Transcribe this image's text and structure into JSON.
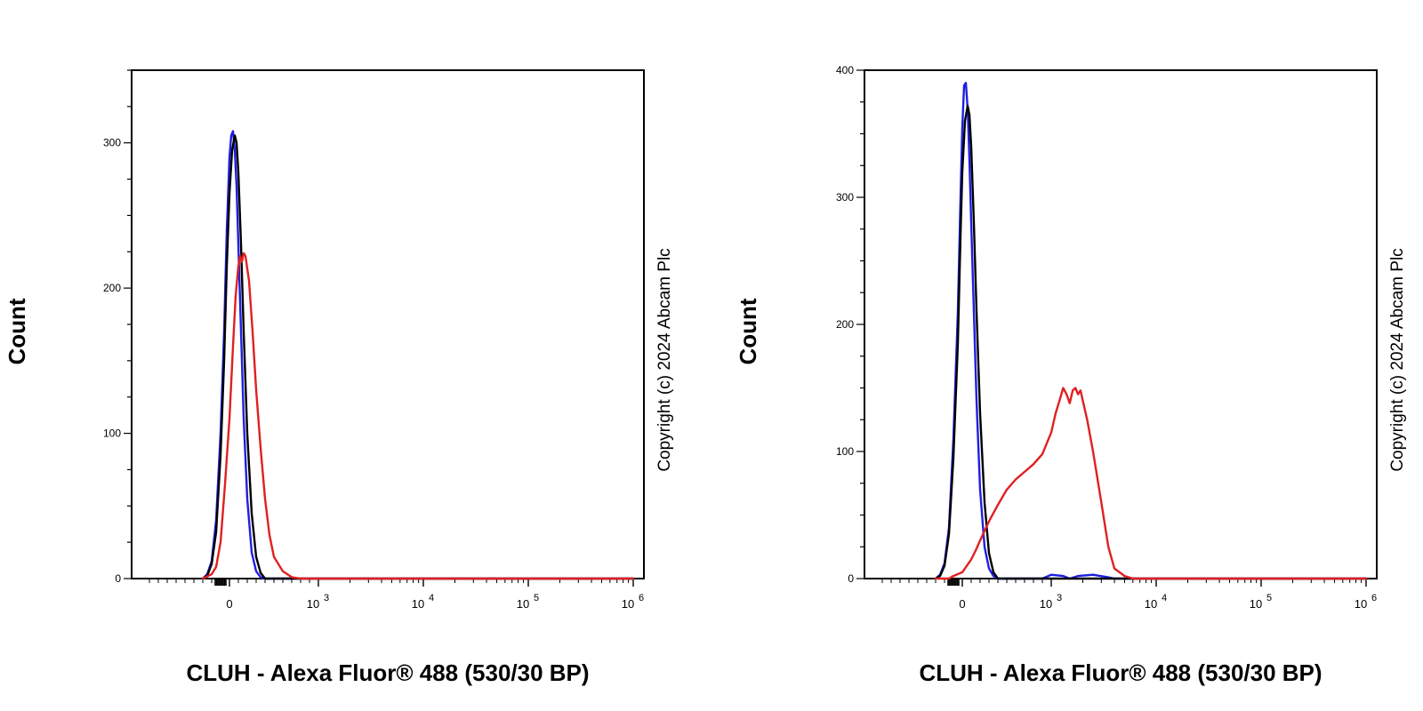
{
  "chart_data": [
    {
      "type": "line",
      "panel": "left",
      "xlabel": "CLUH - Alexa Fluor® 488 (530/30 BP)",
      "ylabel": "Count",
      "copyright": "Copyright (c) 2024 Abcam Plc",
      "x_scale": "biexponential",
      "x_ticks": [
        {
          "value": 0,
          "base": "0",
          "exp": ""
        },
        {
          "value": 1000,
          "base": "10",
          "exp": "3"
        },
        {
          "value": 10000,
          "base": "10",
          "exp": "4"
        },
        {
          "value": 100000,
          "base": "10",
          "exp": "5"
        },
        {
          "value": 1000000,
          "base": "10",
          "exp": "6"
        }
      ],
      "ylim": [
        0,
        350
      ],
      "y_ticks": [
        0,
        100,
        200,
        300
      ],
      "grid": false,
      "legend": "none",
      "series": [
        {
          "color": "#1f1fe0",
          "points": [
            [
              -300,
              0
            ],
            [
              -250,
              3
            ],
            [
              -200,
              12
            ],
            [
              -150,
              40
            ],
            [
              -100,
              100
            ],
            [
              -60,
              170
            ],
            [
              -30,
              240
            ],
            [
              0,
              290
            ],
            [
              20,
              305
            ],
            [
              40,
              308
            ],
            [
              60,
              295
            ],
            [
              80,
              270
            ],
            [
              100,
              230
            ],
            [
              130,
              170
            ],
            [
              160,
              110
            ],
            [
              200,
              55
            ],
            [
              250,
              18
            ],
            [
              300,
              5
            ],
            [
              350,
              1
            ],
            [
              400,
              0
            ],
            [
              1000000,
              0
            ]
          ]
        },
        {
          "color": "#000000",
          "points": [
            [
              -300,
              0
            ],
            [
              -250,
              2
            ],
            [
              -200,
              10
            ],
            [
              -150,
              32
            ],
            [
              -100,
              85
            ],
            [
              -60,
              150
            ],
            [
              -30,
              215
            ],
            [
              0,
              265
            ],
            [
              30,
              295
            ],
            [
              60,
              305
            ],
            [
              80,
              300
            ],
            [
              100,
              280
            ],
            [
              130,
              230
            ],
            [
              160,
              170
            ],
            [
              200,
              100
            ],
            [
              250,
              45
            ],
            [
              300,
              15
            ],
            [
              350,
              4
            ],
            [
              400,
              0
            ],
            [
              1000000,
              0
            ]
          ]
        },
        {
          "color": "#e02020",
          "points": [
            [
              -300,
              0
            ],
            [
              -200,
              3
            ],
            [
              -150,
              8
            ],
            [
              -100,
              25
            ],
            [
              -50,
              65
            ],
            [
              0,
              110
            ],
            [
              40,
              160
            ],
            [
              70,
              195
            ],
            [
              100,
              215
            ],
            [
              120,
              222
            ],
            [
              140,
              218
            ],
            [
              160,
              224
            ],
            [
              180,
              222
            ],
            [
              220,
              205
            ],
            [
              260,
              170
            ],
            [
              300,
              130
            ],
            [
              350,
              90
            ],
            [
              400,
              55
            ],
            [
              450,
              30
            ],
            [
              500,
              15
            ],
            [
              600,
              5
            ],
            [
              700,
              1
            ],
            [
              800,
              0
            ],
            [
              1000000,
              0
            ]
          ]
        }
      ]
    },
    {
      "type": "line",
      "panel": "right",
      "xlabel": "CLUH - Alexa Fluor® 488 (530/30 BP)",
      "ylabel": "Count",
      "copyright": "Copyright (c) 2024 Abcam Plc",
      "x_scale": "biexponential",
      "x_ticks": [
        {
          "value": 0,
          "base": "0",
          "exp": ""
        },
        {
          "value": 1000,
          "base": "10",
          "exp": "3"
        },
        {
          "value": 10000,
          "base": "10",
          "exp": "4"
        },
        {
          "value": 100000,
          "base": "10",
          "exp": "5"
        },
        {
          "value": 1000000,
          "base": "10",
          "exp": "6"
        }
      ],
      "ylim": [
        0,
        400
      ],
      "y_ticks": [
        0,
        100,
        200,
        300,
        400
      ],
      "grid": false,
      "legend": "none",
      "series": [
        {
          "color": "#1f1fe0",
          "points": [
            [
              -300,
              0
            ],
            [
              -250,
              3
            ],
            [
              -200,
              12
            ],
            [
              -150,
              40
            ],
            [
              -100,
              110
            ],
            [
              -50,
              210
            ],
            [
              -20,
              300
            ],
            [
              0,
              355
            ],
            [
              20,
              388
            ],
            [
              40,
              390
            ],
            [
              60,
              370
            ],
            [
              80,
              330
            ],
            [
              100,
              280
            ],
            [
              130,
              210
            ],
            [
              160,
              140
            ],
            [
              200,
              70
            ],
            [
              250,
              25
            ],
            [
              300,
              8
            ],
            [
              350,
              2
            ],
            [
              400,
              0
            ],
            [
              900,
              0
            ],
            [
              1000,
              3
            ],
            [
              1300,
              2
            ],
            [
              1500,
              0
            ],
            [
              1800,
              2
            ],
            [
              2500,
              3
            ],
            [
              3500,
              1
            ],
            [
              4000,
              0
            ],
            [
              1000000,
              0
            ]
          ]
        },
        {
          "color": "#000000",
          "points": [
            [
              -300,
              0
            ],
            [
              -250,
              2
            ],
            [
              -200,
              10
            ],
            [
              -150,
              35
            ],
            [
              -100,
              95
            ],
            [
              -50,
              185
            ],
            [
              -20,
              270
            ],
            [
              0,
              320
            ],
            [
              30,
              360
            ],
            [
              60,
              372
            ],
            [
              80,
              365
            ],
            [
              100,
              340
            ],
            [
              130,
              280
            ],
            [
              160,
              210
            ],
            [
              200,
              130
            ],
            [
              250,
              60
            ],
            [
              300,
              20
            ],
            [
              350,
              5
            ],
            [
              400,
              0
            ],
            [
              1000000,
              0
            ]
          ]
        },
        {
          "color": "#e02020",
          "points": [
            [
              -300,
              0
            ],
            [
              -150,
              0
            ],
            [
              -100,
              2
            ],
            [
              0,
              5
            ],
            [
              50,
              10
            ],
            [
              100,
              15
            ],
            [
              150,
              22
            ],
            [
              200,
              30
            ],
            [
              300,
              45
            ],
            [
              400,
              58
            ],
            [
              500,
              70
            ],
            [
              600,
              78
            ],
            [
              700,
              84
            ],
            [
              800,
              90
            ],
            [
              900,
              98
            ],
            [
              1000,
              115
            ],
            [
              1100,
              130
            ],
            [
              1200,
              140
            ],
            [
              1300,
              150
            ],
            [
              1400,
              145
            ],
            [
              1500,
              138
            ],
            [
              1600,
              148
            ],
            [
              1700,
              150
            ],
            [
              1800,
              145
            ],
            [
              1900,
              148
            ],
            [
              2000,
              140
            ],
            [
              2200,
              125
            ],
            [
              2500,
              100
            ],
            [
              3000,
              60
            ],
            [
              3500,
              25
            ],
            [
              4000,
              8
            ],
            [
              5000,
              2
            ],
            [
              6000,
              0
            ],
            [
              1000000,
              0
            ]
          ]
        }
      ]
    }
  ]
}
